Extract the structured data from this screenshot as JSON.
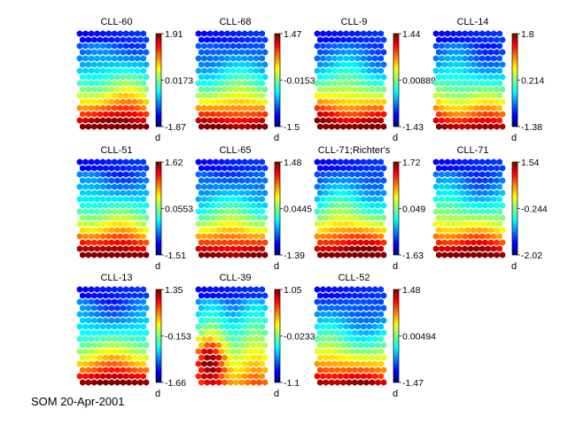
{
  "footer": "SOM 20-Apr-2001",
  "chart_data": [
    {
      "type": "heatmap",
      "title": "CLL-60",
      "colorbar": {
        "max": "1.91",
        "mid": "0.0173",
        "min": "-1.87",
        "label": "d"
      },
      "hot": 2
    },
    {
      "type": "heatmap",
      "title": "CLL-68",
      "colorbar": {
        "max": "1.47",
        "mid": "-0.0153",
        "min": "-1.5",
        "label": "d"
      },
      "hot": 0
    },
    {
      "type": "heatmap",
      "title": "CLL-9",
      "colorbar": {
        "max": "1.44",
        "mid": "0.00889",
        "min": "-1.43",
        "label": "d"
      },
      "hot": 1
    },
    {
      "type": "heatmap",
      "title": "CLL-14",
      "colorbar": {
        "max": "1.8",
        "mid": "0.214",
        "min": "-1.38",
        "label": "d"
      },
      "hot": 3
    },
    {
      "type": "heatmap",
      "title": "CLL-51",
      "colorbar": {
        "max": "1.62",
        "mid": "0.0553",
        "min": "-1.51",
        "label": "d"
      },
      "hot": 1
    },
    {
      "type": "heatmap",
      "title": "CLL-65",
      "colorbar": {
        "max": "1.48",
        "mid": "0.0445",
        "min": "-1.39",
        "label": "d"
      },
      "hot": 0
    },
    {
      "type": "heatmap",
      "title": "CLL-71;Richter's",
      "colorbar": {
        "max": "1.72",
        "mid": "0.049",
        "min": "-1.63",
        "label": "d"
      },
      "hot": 2
    },
    {
      "type": "heatmap",
      "title": "CLL-71",
      "colorbar": {
        "max": "1.54",
        "mid": "-0.244",
        "min": "-2.02",
        "label": "d"
      },
      "hot": 1
    },
    {
      "type": "heatmap",
      "title": "CLL-13",
      "colorbar": {
        "max": "1.35",
        "mid": "-0.153",
        "min": "-1.66",
        "label": "d"
      },
      "hot": 0
    },
    {
      "type": "heatmap",
      "title": "CLL-39",
      "colorbar": {
        "max": "1.05",
        "mid": "-0.0233",
        "min": "-1.1",
        "label": "d"
      },
      "hot": 4
    },
    {
      "type": "heatmap",
      "title": "CLL-52",
      "colorbar": {
        "max": "1.48",
        "mid": "0.00494",
        "min": "-1.47",
        "label": "d"
      },
      "hot": 3
    }
  ]
}
